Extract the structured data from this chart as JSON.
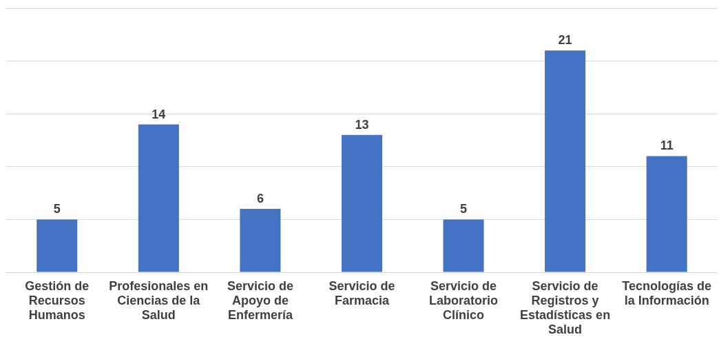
{
  "chart_data": {
    "type": "bar",
    "categories": [
      "Gestión de Recursos Humanos",
      "Profesionales en Ciencias de la Salud",
      "Servicio de Apoyo de Enfermería",
      "Servicio de Farmacia",
      "Servicio de Laboratorio Clínico",
      "Servicio de Registros y Estadísticas en Salud",
      "Tecnologías de la Información"
    ],
    "values": [
      5,
      14,
      6,
      13,
      5,
      21,
      11
    ],
    "color": "#4472c4",
    "ylim": [
      0,
      25
    ],
    "yticks": [
      {
        "value": 0,
        "label": null
      },
      {
        "value": 5,
        "label": null
      },
      {
        "value": 10,
        "label": null
      },
      {
        "value": 15,
        "label": null
      },
      {
        "value": 20,
        "label": null
      },
      {
        "value": 25,
        "label": null
      }
    ],
    "grid": "y",
    "tick_labels": "x",
    "data_labels": true
  }
}
